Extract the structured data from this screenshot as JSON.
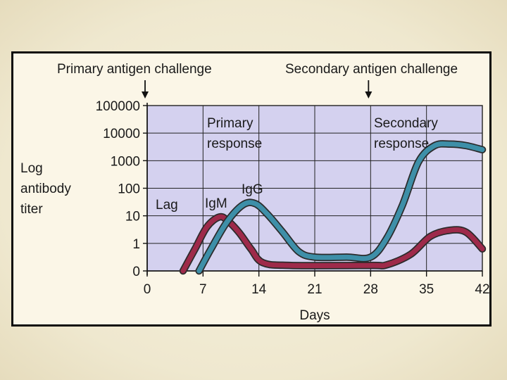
{
  "slide": {
    "background_color": "#f3edd6",
    "frame_color": "#0b0b0b"
  },
  "chart_data": {
    "type": "line",
    "title": "",
    "xlabel": "Days",
    "ylabel": [
      "Log",
      "antibody",
      "titer"
    ],
    "x_ticks": [
      0,
      7,
      14,
      21,
      28,
      35,
      42
    ],
    "x_tick_labels": [
      "0",
      "7",
      "14",
      "21",
      "28",
      "35",
      "42"
    ],
    "xlim": [
      0,
      42
    ],
    "y_ticks": [
      0,
      1,
      10,
      100,
      1000,
      10000,
      100000
    ],
    "y_tick_labels": [
      "0",
      "1",
      "10",
      "100",
      "1000",
      "10000",
      "100000"
    ],
    "y_scale": "log",
    "grid": true,
    "plot_background": "#d4d1ef",
    "series": [
      {
        "name": "IgM",
        "color": "#9e2a4a",
        "points": [
          [
            4.5,
            0
          ],
          [
            6,
            0.8
          ],
          [
            7.5,
            4
          ],
          [
            9,
            9
          ],
          [
            10,
            7
          ],
          [
            11.5,
            2.5
          ],
          [
            13,
            0.8
          ],
          [
            14.5,
            0.3
          ],
          [
            18,
            0.2
          ],
          [
            28,
            0.2
          ],
          [
            30,
            0.22
          ],
          [
            33,
            0.6
          ],
          [
            35.5,
            1.8
          ],
          [
            38,
            3
          ],
          [
            40,
            2.5
          ],
          [
            42,
            0.8
          ]
        ]
      },
      {
        "name": "IgG",
        "color": "#3e8fa8",
        "points": [
          [
            6.5,
            0
          ],
          [
            8,
            0.8
          ],
          [
            10,
            6
          ],
          [
            12,
            25
          ],
          [
            13.5,
            28
          ],
          [
            15,
            12
          ],
          [
            17,
            2.5
          ],
          [
            19,
            0.7
          ],
          [
            21,
            0.5
          ],
          [
            25,
            0.5
          ],
          [
            28,
            0.5
          ],
          [
            30,
            1.5
          ],
          [
            32,
            25
          ],
          [
            34,
            900
          ],
          [
            36,
            3500
          ],
          [
            38,
            4000
          ],
          [
            40,
            3500
          ],
          [
            42,
            2500
          ]
        ]
      }
    ],
    "annotations": [
      {
        "text": "Primary antigen challenge",
        "x": 0,
        "arrow": true
      },
      {
        "text": "Secondary antigen challenge",
        "x": 28,
        "arrow": true
      },
      {
        "text": "Primary",
        "x": 8
      },
      {
        "text": "response",
        "x": 8
      },
      {
        "text": "Secondary",
        "x": 28
      },
      {
        "text": "response",
        "x": 28
      },
      {
        "text": "Lag",
        "x": 2
      },
      {
        "text": "IgM",
        "x": 8
      },
      {
        "text": "IgG",
        "x": 12
      }
    ]
  }
}
